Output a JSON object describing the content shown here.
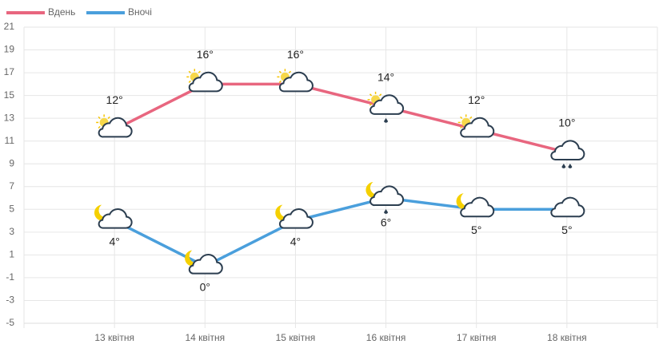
{
  "chart_data": {
    "type": "line",
    "categories": [
      "13 квітня",
      "14 квітня",
      "15 квітня",
      "16 квітня",
      "17 квітня",
      "18 квітня"
    ],
    "series": [
      {
        "name": "Вдень",
        "color": "#e8667f",
        "values": [
          12,
          16,
          16,
          14,
          12,
          10
        ],
        "value_labels": [
          "12°",
          "16°",
          "16°",
          "14°",
          "12°",
          "10°"
        ]
      },
      {
        "name": "Вночі",
        "color": "#4a9fdc",
        "values": [
          4,
          0,
          4,
          6,
          5,
          5
        ],
        "value_labels": [
          "4°",
          "0°",
          "4°",
          "6°",
          "5°",
          "5°"
        ]
      }
    ],
    "ylim": [
      -5,
      21
    ],
    "yticks": [
      -5,
      -3,
      -1,
      1,
      3,
      5,
      7,
      9,
      11,
      13,
      15,
      17,
      19,
      21
    ],
    "grid": true
  }
}
